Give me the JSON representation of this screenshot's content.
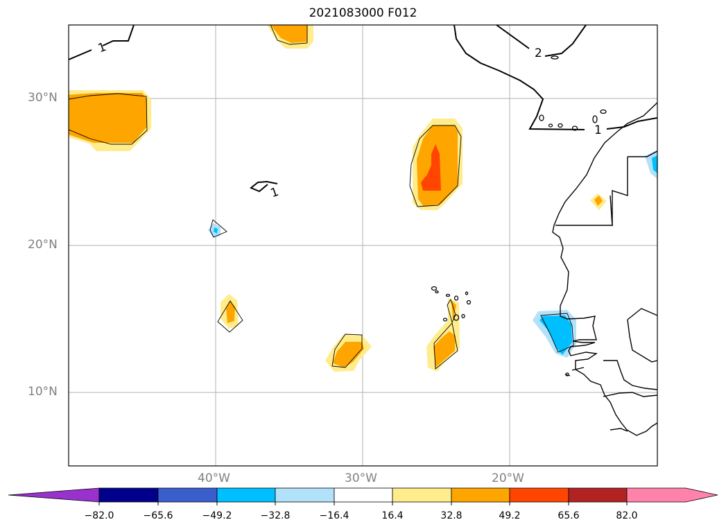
{
  "title": "2021083000 F012",
  "lat_labels": [
    "30°N",
    "20°N",
    "10°N"
  ],
  "lon_labels": [
    "40°W",
    "30°W",
    "20°W"
  ],
  "contour_labels": [
    "1",
    "2",
    "1",
    "1"
  ],
  "colorbar": {
    "tick_labels": [
      "−82.0",
      "−65.6",
      "−49.2",
      "−32.8",
      "−16.4",
      "16.4",
      "32.8",
      "49.2",
      "65.6",
      "82.0"
    ],
    "colors": [
      "#9932CC",
      "#00008B",
      "#3A5FCD",
      "#00BFFF",
      "#B2E2FA",
      "#FFFFFF",
      "#FFEC8B",
      "#FFA500",
      "#FF4500",
      "#B22222",
      "#FF82AB"
    ]
  },
  "map": {
    "extent": {
      "lon_min": -50,
      "lon_max": -10,
      "lat_min": 5,
      "lat_max": 35
    },
    "colors": {
      "light_orange": "#FFEC8B",
      "orange": "#FFA500",
      "red_orange": "#FF4500",
      "light_blue": "#B2E2FA",
      "blue": "#00BFFF"
    }
  }
}
